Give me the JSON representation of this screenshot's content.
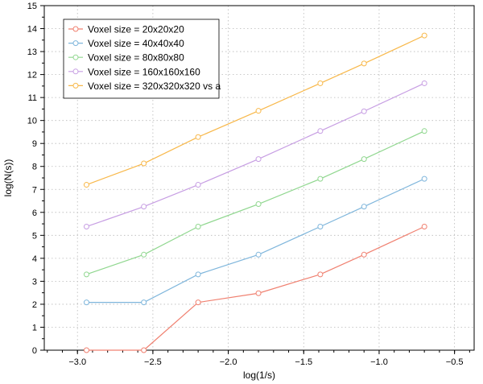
{
  "chart_data": {
    "type": "line",
    "xlabel": "log(1/s)",
    "ylabel": "log(N(s))",
    "xlim": [
      -3.22,
      -0.37
    ],
    "ylim": [
      0,
      15
    ],
    "xticks": [
      -3.0,
      -2.5,
      -2.0,
      -1.5,
      -1.0,
      -0.5
    ],
    "xtick_labels": [
      "−3.0",
      "−2.5",
      "−2.0",
      "−1.5",
      "−1.0",
      "−0.5"
    ],
    "yticks": [
      0,
      1,
      2,
      3,
      4,
      5,
      6,
      7,
      8,
      9,
      10,
      11,
      12,
      13,
      14,
      15
    ],
    "ytick_labels": [
      "0",
      "1",
      "2",
      "3",
      "4",
      "5",
      "6",
      "7",
      "8",
      "9",
      "10",
      "11",
      "12",
      "13",
      "14",
      "15"
    ],
    "grid": true,
    "legend_position": "top-left",
    "marker": "open-circle",
    "x": [
      -2.94,
      -2.56,
      -2.2,
      -1.8,
      -1.39,
      -1.1,
      -0.7
    ],
    "series": [
      {
        "name": "Voxel size = 20x20x20",
        "color": "#f08070",
        "values": [
          0,
          0,
          2.08,
          2.48,
          3.3,
          4.16,
          5.38
        ]
      },
      {
        "name": "Voxel size = 40x40x40",
        "color": "#7fb6dc",
        "values": [
          2.08,
          2.08,
          3.3,
          4.16,
          5.38,
          6.25,
          7.46
        ]
      },
      {
        "name": "Voxel size = 80x80x80",
        "color": "#90d78f",
        "values": [
          3.3,
          4.16,
          5.38,
          6.36,
          7.46,
          8.32,
          9.54
        ]
      },
      {
        "name": "Voxel size = 160x160x160",
        "color": "#c79ee3",
        "values": [
          5.38,
          6.25,
          7.2,
          8.32,
          9.54,
          10.4,
          11.62
        ]
      },
      {
        "name": "Voxel size = 320x320x320 vs a",
        "color": "#f8b84a",
        "values": [
          7.2,
          8.13,
          9.28,
          10.42,
          11.62,
          12.48,
          13.7
        ]
      }
    ]
  }
}
